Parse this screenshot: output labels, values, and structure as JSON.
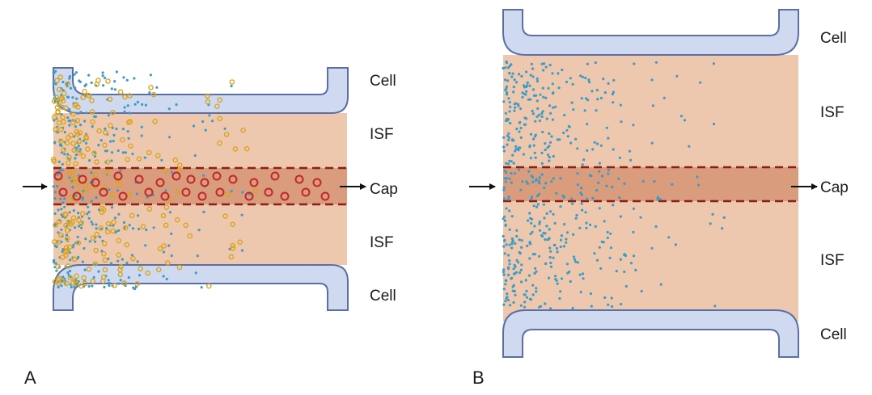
{
  "panel_a": {
    "letter": "A",
    "labels": {
      "cell_top": "Cell",
      "isf_top": "ISF",
      "cap": "Cap",
      "isf_bottom": "ISF",
      "cell_bottom": "Cell"
    }
  },
  "panel_b": {
    "letter": "B",
    "labels": {
      "cell_top": "Cell",
      "isf_top": "ISF",
      "cap": "Cap",
      "isf_bottom": "ISF",
      "cell_bottom": "Cell"
    }
  },
  "colors": {
    "isf": "#eec8ae",
    "capillary": "#d99c7c",
    "cap_border": "#8b1e16",
    "cell_fill": "#cfd9f0",
    "cell_stroke": "#5b6fa6",
    "small_dot": "#3d9bc6",
    "yellow_ring": "#d9a420",
    "red_ring": "#c3262a",
    "arrow": "#111111"
  }
}
